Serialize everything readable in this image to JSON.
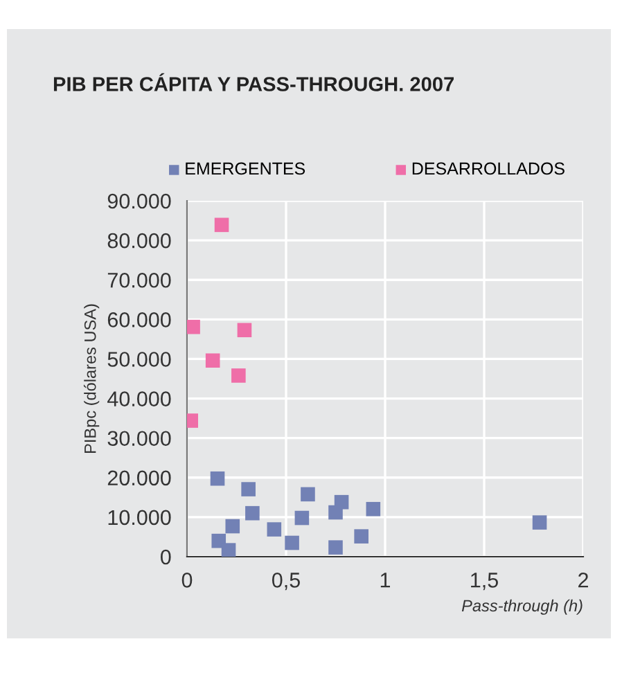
{
  "chart_data": {
    "type": "scatter",
    "title": "PIB PER CÁPITA Y PASS-THROUGH. 2007",
    "xlabel": "Pass-through (h)",
    "ylabel": "PIBpc (dólares USA)",
    "series": [
      {
        "name": "EMERGENTES",
        "color": "#7281b5",
        "x": [
          0.154,
          0.31,
          0.61,
          0.78,
          0.75,
          0.94,
          0.33,
          0.58,
          1.78,
          0.23,
          0.44,
          0.16,
          0.53,
          0.88,
          0.21,
          0.75
        ],
        "values": [
          19750,
          17060,
          15780,
          13800,
          11200,
          12040,
          11000,
          9800,
          8650,
          7700,
          6900,
          4000,
          3500,
          5140,
          1640,
          2340
        ]
      },
      {
        "name": "DESARROLLADOS",
        "color": "#ef6ea8",
        "x": [
          0.175,
          0.03,
          0.29,
          0.13,
          0.26,
          0.02
        ],
        "values": [
          83900,
          58100,
          57300,
          49600,
          45800,
          34400
        ]
      }
    ],
    "xlim": [
      0,
      2
    ],
    "xticks": [
      0,
      {
        "value": 0.5,
        "label": "0,5"
      },
      1,
      {
        "value": 1.5,
        "label": "1,5"
      },
      2
    ],
    "ylim": [
      0,
      90000
    ],
    "yticks": [
      0,
      {
        "value": 10000,
        "label": "10.000"
      },
      {
        "value": 20000,
        "label": "20.000"
      },
      {
        "value": 30000,
        "label": "30.000"
      },
      {
        "value": 40000,
        "label": "40.000"
      },
      {
        "value": 50000,
        "label": "50.000"
      },
      {
        "value": 60000,
        "label": "60.000"
      },
      {
        "value": 70000,
        "label": "70.000"
      },
      {
        "value": 80000,
        "label": "80.000"
      },
      {
        "value": 90000,
        "label": "90.000"
      }
    ],
    "grid": true,
    "legend": "top",
    "marker": "square"
  }
}
